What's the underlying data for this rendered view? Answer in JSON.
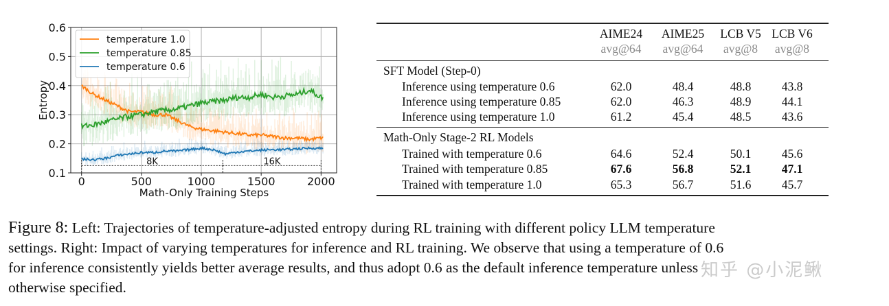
{
  "chart_data": {
    "type": "line",
    "title": "",
    "xlabel": "Math-Only Training Steps",
    "ylabel": "Entropy",
    "xlim": [
      -90,
      2130
    ],
    "ylim": [
      0.1,
      0.6
    ],
    "xticks": [
      0,
      500,
      1000,
      1500,
      2000
    ],
    "xtick_labels": [
      "0",
      "500",
      "1000",
      "1500",
      "2000"
    ],
    "yticks": [
      0.1,
      0.2,
      0.3,
      0.4,
      0.5,
      0.6
    ],
    "ytick_labels": [
      "0.1",
      "0.2",
      "0.3",
      "0.4",
      "0.5",
      "0.6"
    ],
    "grid": true,
    "legend_position": "top-left",
    "x": [
      0,
      100,
      200,
      300,
      400,
      500,
      600,
      700,
      800,
      900,
      1000,
      1100,
      1200,
      1300,
      1400,
      1500,
      1600,
      1700,
      1800,
      1900,
      2000
    ],
    "series": [
      {
        "name": "temperature 1.0",
        "color": "#ff7f0e",
        "values": [
          0.4,
          0.37,
          0.35,
          0.33,
          0.31,
          0.31,
          0.3,
          0.3,
          0.28,
          0.26,
          0.25,
          0.245,
          0.24,
          0.235,
          0.23,
          0.23,
          0.225,
          0.22,
          0.22,
          0.215,
          0.22
        ]
      },
      {
        "name": "temperature 0.85",
        "color": "#2ca02c",
        "values": [
          0.26,
          0.265,
          0.275,
          0.285,
          0.295,
          0.3,
          0.31,
          0.315,
          0.32,
          0.33,
          0.34,
          0.345,
          0.35,
          0.36,
          0.36,
          0.37,
          0.36,
          0.365,
          0.37,
          0.385,
          0.36
        ]
      },
      {
        "name": "temperature 0.6",
        "color": "#1f77b4",
        "values": [
          0.148,
          0.145,
          0.15,
          0.16,
          0.165,
          0.17,
          0.17,
          0.175,
          0.175,
          0.18,
          0.185,
          0.18,
          0.165,
          0.172,
          0.175,
          0.178,
          0.18,
          0.18,
          0.183,
          0.185,
          0.185
        ]
      }
    ],
    "annotations": [
      {
        "text": "8K",
        "x_start": 0,
        "x_end": 1180,
        "y": 0.125
      },
      {
        "text": "16K",
        "x_start": 1180,
        "x_end": 2000,
        "y": 0.125
      }
    ]
  },
  "table": {
    "columns": [
      {
        "name": "AIME24",
        "sub": "avg@64"
      },
      {
        "name": "AIME25",
        "sub": "avg@64"
      },
      {
        "name": "LCB V5",
        "sub": "avg@8"
      },
      {
        "name": "LCB V6",
        "sub": "avg@8"
      }
    ],
    "groups": [
      {
        "title": "SFT Model (Step-0)",
        "rows": [
          {
            "label": "Inference using temperature 0.6",
            "values": [
              "62.0",
              "48.4",
              "48.8",
              "43.8"
            ],
            "bold": false
          },
          {
            "label": "Inference using temperature 0.85",
            "values": [
              "62.0",
              "46.3",
              "48.9",
              "44.1"
            ],
            "bold": false
          },
          {
            "label": "Inference using temperature 1.0",
            "values": [
              "61.2",
              "45.4",
              "48.5",
              "43.6"
            ],
            "bold": false
          }
        ]
      },
      {
        "title": "Math-Only Stage-2 RL Models",
        "rows": [
          {
            "label": "Trained with temperature 0.6",
            "values": [
              "64.6",
              "52.4",
              "50.1",
              "45.6"
            ],
            "bold": false
          },
          {
            "label": "Trained with temperature 0.85",
            "values": [
              "67.6",
              "56.8",
              "52.1",
              "47.1"
            ],
            "bold": true
          },
          {
            "label": "Trained with temperature 1.0",
            "values": [
              "65.3",
              "56.7",
              "51.6",
              "45.7"
            ],
            "bold": false
          }
        ]
      }
    ]
  },
  "caption": {
    "prefix": "Figure 8:",
    "lines": [
      " Left: Trajectories of temperature-adjusted entropy during RL training with different policy LLM temperature",
      "settings. Right: Impact of varying temperatures for inference and RL training. We observe that using a temperature of 0.6",
      "for inference consistently yields better average results, and thus adopt 0.6 as the default inference temperature unless",
      "otherwise specified."
    ]
  },
  "watermark": "知乎 @小泥鳅"
}
